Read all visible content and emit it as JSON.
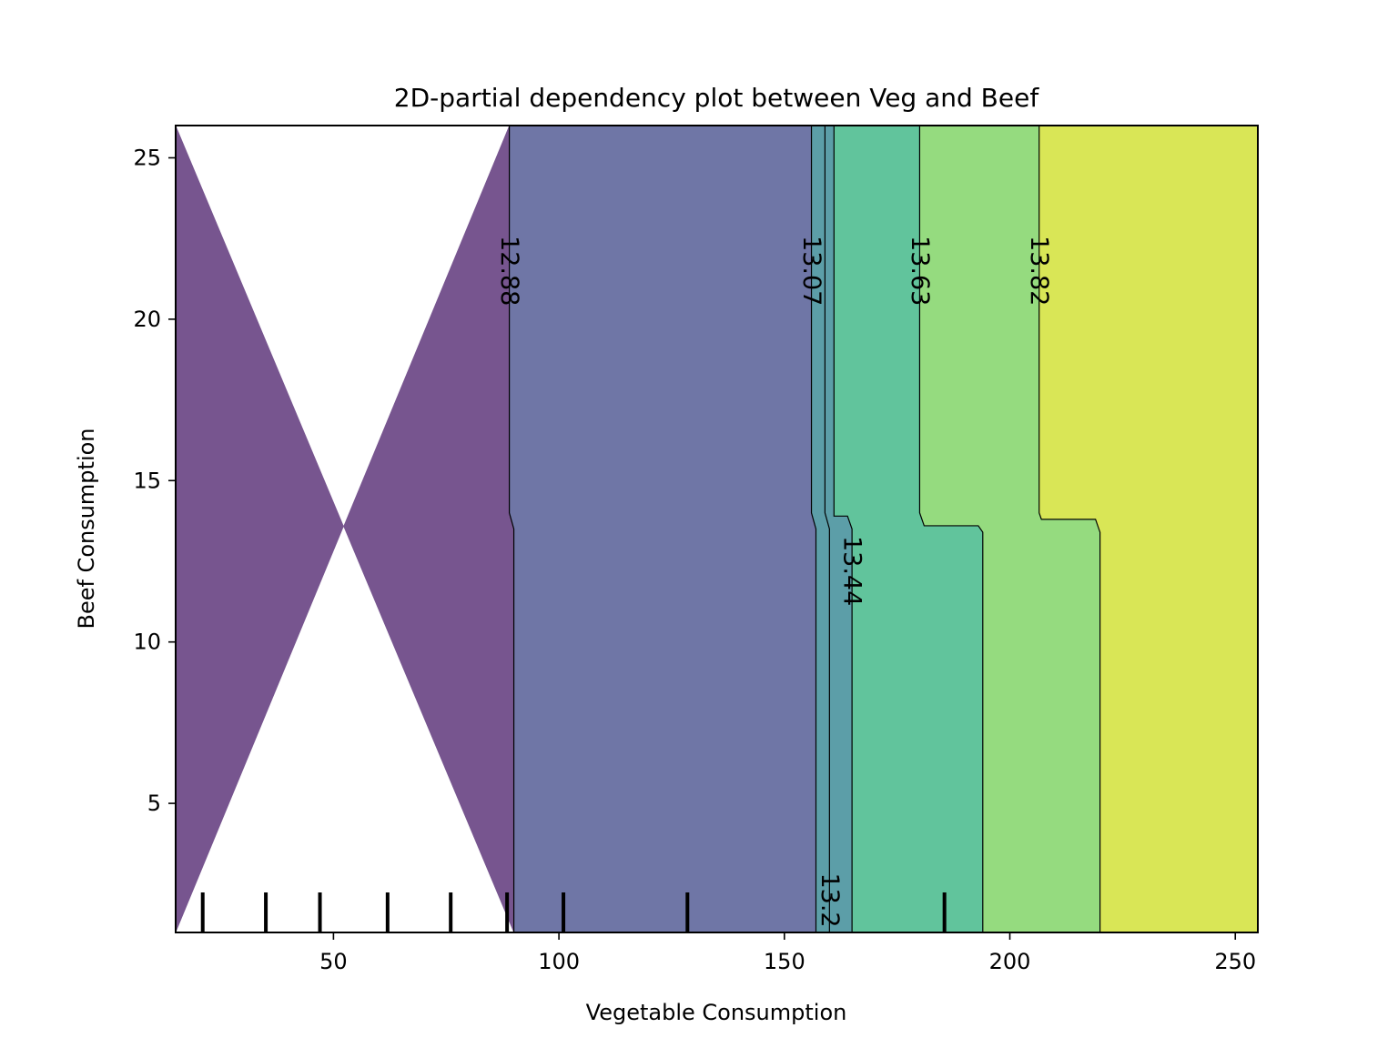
{
  "chart_data": {
    "type": "contour",
    "title": "2D-partial dependency plot between Veg and Beef",
    "xlabel": "Vegetable Consumption",
    "ylabel": "Beef Consumption",
    "xlim": [
      15,
      255
    ],
    "ylim": [
      1,
      26
    ],
    "xticks": [
      50,
      100,
      150,
      200,
      250
    ],
    "yticks": [
      5,
      10,
      15,
      20,
      25
    ],
    "grid": false,
    "regions": [
      {
        "color": "#77558f",
        "boundary_low": [
          [
            15,
            1
          ],
          [
            15,
            26
          ]
        ],
        "boundary_high": [
          [
            89,
            26
          ],
          [
            89,
            14
          ],
          [
            90,
            13.5
          ],
          [
            90,
            1
          ]
        ]
      },
      {
        "color": "#6f76a6",
        "boundary_low": [
          [
            89,
            26
          ],
          [
            89,
            14
          ],
          [
            90,
            13.5
          ],
          [
            90,
            1
          ]
        ],
        "boundary_high": [
          [
            156,
            26
          ],
          [
            156,
            14
          ],
          [
            157,
            13.5
          ],
          [
            157,
            1
          ]
        ]
      },
      {
        "color": "#5c9ea8",
        "boundary_low": [
          [
            156,
            26
          ],
          [
            156,
            14
          ],
          [
            157,
            13.5
          ],
          [
            157,
            1
          ]
        ],
        "boundary_high": [
          [
            161,
            26
          ],
          [
            161,
            13.9
          ],
          [
            164,
            13.9
          ],
          [
            165,
            13.5
          ],
          [
            165,
            1
          ]
        ]
      },
      {
        "color": "#61c49c",
        "boundary_low": [
          [
            161,
            26
          ],
          [
            161,
            13.9
          ],
          [
            164,
            13.9
          ],
          [
            165,
            13.5
          ],
          [
            165,
            1
          ]
        ],
        "boundary_high": [
          [
            180,
            26
          ],
          [
            180,
            14
          ],
          [
            181,
            13.6
          ],
          [
            193,
            13.6
          ],
          [
            194,
            13.4
          ],
          [
            194,
            1
          ]
        ]
      },
      {
        "color": "#95db7f",
        "boundary_low": [
          [
            180,
            26
          ],
          [
            180,
            14
          ],
          [
            181,
            13.6
          ],
          [
            193,
            13.6
          ],
          [
            194,
            13.4
          ],
          [
            194,
            1
          ]
        ],
        "boundary_high": [
          [
            206.5,
            26
          ],
          [
            206.5,
            14
          ],
          [
            207,
            13.8
          ],
          [
            219,
            13.8
          ],
          [
            220,
            13.4
          ],
          [
            220,
            1
          ]
        ]
      },
      {
        "color": "#d9e656",
        "boundary_low": [
          [
            206.5,
            26
          ],
          [
            206.5,
            14
          ],
          [
            207,
            13.8
          ],
          [
            219,
            13.8
          ],
          [
            220,
            13.4
          ],
          [
            220,
            1
          ]
        ],
        "boundary_high": [
          [
            255,
            26
          ],
          [
            255,
            1
          ]
        ]
      }
    ],
    "contour_lines": [
      {
        "level": "12.88",
        "points": [
          [
            89,
            26
          ],
          [
            89,
            14
          ],
          [
            90,
            13.5
          ],
          [
            90,
            1
          ]
        ],
        "label_at": [
          89,
          21.5
        ]
      },
      {
        "level": "13.07",
        "points": [
          [
            156,
            26
          ],
          [
            156,
            14
          ],
          [
            157,
            13.5
          ],
          [
            157,
            1
          ]
        ],
        "label_at": [
          156,
          21.5
        ]
      },
      {
        "level": "13.2",
        "points": [
          [
            159,
            26
          ],
          [
            159,
            14
          ],
          [
            160,
            13.5
          ],
          [
            160,
            1
          ]
        ],
        "label_at": [
          160,
          2.0
        ]
      },
      {
        "level": "13.44",
        "points": [
          [
            161,
            26
          ],
          [
            161,
            13.9
          ],
          [
            164,
            13.9
          ],
          [
            165,
            13.5
          ],
          [
            165,
            1
          ]
        ],
        "label_at": [
          165,
          12.2
        ]
      },
      {
        "level": "13.63",
        "points": [
          [
            180,
            26
          ],
          [
            180,
            14
          ],
          [
            181,
            13.6
          ],
          [
            193,
            13.6
          ],
          [
            194,
            13.4
          ],
          [
            194,
            1
          ]
        ],
        "label_at": [
          180,
          21.5
        ]
      },
      {
        "level": "13.82",
        "points": [
          [
            206.5,
            26
          ],
          [
            206.5,
            14
          ],
          [
            207,
            13.8
          ],
          [
            219,
            13.8
          ],
          [
            220,
            13.4
          ],
          [
            220,
            1
          ]
        ],
        "label_at": [
          206.5,
          21.5
        ]
      }
    ],
    "rug_x": [
      21,
      35,
      47,
      62,
      76,
      88.5,
      101,
      128.5,
      185.5
    ]
  }
}
